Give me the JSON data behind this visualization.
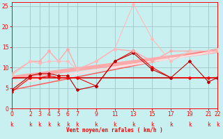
{
  "background_color": "#c8f0f0",
  "grid_color": "#a0c8c8",
  "xlabel": "Vent moyen/en rafales ( km/h )",
  "xlabel_color": "#ff0000",
  "tick_color": "#ff0000",
  "xlim": [
    0,
    22
  ],
  "ylim": [
    0,
    26
  ],
  "yticks": [
    0,
    5,
    10,
    15,
    20,
    25
  ],
  "xticks": [
    0,
    2,
    3,
    4,
    5,
    6,
    7,
    9,
    11,
    13,
    15,
    17,
    19,
    21,
    22
  ],
  "lines": [
    {
      "x": [
        0,
        2,
        3,
        4,
        5,
        6,
        7,
        9,
        11,
        13,
        15,
        17,
        19,
        21,
        22
      ],
      "y": [
        7.5,
        7.5,
        7.5,
        7.5,
        7.5,
        7.5,
        7.5,
        7.5,
        7.5,
        7.5,
        7.5,
        7.5,
        7.5,
        7.5,
        7.5
      ],
      "color": "#cc0000",
      "linewidth": 1.2,
      "marker": null,
      "markersize": 0,
      "zorder": 3
    },
    {
      "x": [
        0,
        2,
        3,
        4,
        5,
        6,
        7,
        9,
        11,
        13,
        15,
        17,
        19,
        21,
        22
      ],
      "y": [
        4.0,
        7.5,
        7.5,
        8.0,
        7.5,
        7.5,
        7.5,
        5.5,
        11.5,
        14.0,
        10.0,
        7.5,
        7.5,
        7.5,
        7.5
      ],
      "color": "#ff0000",
      "linewidth": 0.8,
      "marker": "D",
      "markersize": 2.0,
      "zorder": 4
    },
    {
      "x": [
        0,
        2,
        3,
        4,
        5,
        6,
        7,
        9,
        11,
        13,
        15,
        17,
        19,
        21,
        22
      ],
      "y": [
        4.5,
        8.0,
        8.5,
        8.5,
        8.0,
        8.0,
        4.5,
        5.5,
        11.5,
        13.5,
        9.5,
        7.5,
        11.5,
        6.5,
        7.5
      ],
      "color": "#bb0000",
      "linewidth": 0.8,
      "marker": "D",
      "markersize": 2.0,
      "zorder": 4
    },
    {
      "x": [
        0,
        2,
        3,
        4,
        5,
        6,
        7,
        9,
        11,
        13,
        15,
        17,
        19,
        21,
        22
      ],
      "y": [
        8.5,
        11.5,
        11.5,
        14.0,
        11.5,
        14.5,
        9.5,
        11.5,
        14.5,
        14.0,
        11.5,
        14.0,
        14.0,
        14.0,
        14.0
      ],
      "color": "#ffaaaa",
      "linewidth": 1.0,
      "marker": "D",
      "markersize": 2.0,
      "zorder": 4
    },
    {
      "x": [
        0,
        2,
        3,
        4,
        5,
        6,
        7,
        9,
        11,
        13,
        15,
        17,
        19,
        21,
        22
      ],
      "y": [
        8.0,
        11.5,
        11.0,
        11.5,
        11.5,
        11.5,
        9.5,
        11.5,
        14.5,
        25.5,
        17.0,
        11.5,
        14.0,
        14.0,
        14.5
      ],
      "color": "#ffbbbb",
      "linewidth": 0.8,
      "marker": "D",
      "markersize": 2.0,
      "zorder": 4
    },
    {
      "x": [
        0,
        22
      ],
      "y": [
        7.5,
        14.0
      ],
      "color": "#ffaaaa",
      "linewidth": 4.0,
      "marker": null,
      "markersize": 0,
      "zorder": 2
    },
    {
      "x": [
        0,
        22
      ],
      "y": [
        4.5,
        14.5
      ],
      "color": "#ff6666",
      "linewidth": 1.2,
      "marker": null,
      "markersize": 0,
      "zorder": 2
    },
    {
      "x": [
        0,
        22
      ],
      "y": [
        6.0,
        14.0
      ],
      "color": "#ffdddd",
      "linewidth": 2.0,
      "marker": null,
      "markersize": 0,
      "zorder": 2
    }
  ],
  "wind_arrows_x": [
    0,
    2,
    3,
    4,
    5,
    6,
    7,
    9,
    11,
    13,
    15,
    17,
    19,
    21,
    22
  ],
  "arrow_symbol": "⬉"
}
